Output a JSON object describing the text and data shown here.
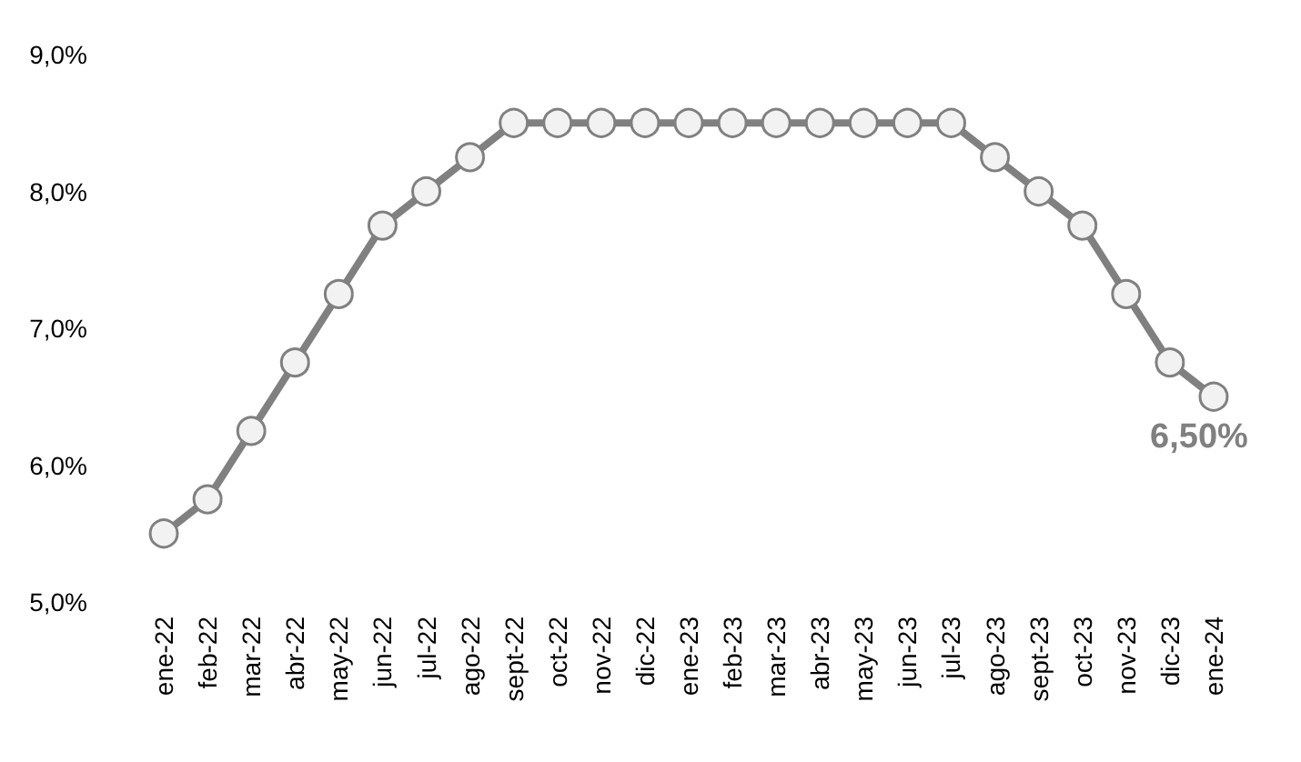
{
  "chart_data": {
    "type": "line",
    "categories": [
      "ene-22",
      "feb-22",
      "mar-22",
      "abr-22",
      "may-22",
      "jun-22",
      "jul-22",
      "ago-22",
      "sept-22",
      "oct-22",
      "nov-22",
      "dic-22",
      "ene-23",
      "feb-23",
      "mar-23",
      "abr-23",
      "may-23",
      "jun-23",
      "jul-23",
      "ago-23",
      "sept-23",
      "oct-23",
      "nov-23",
      "dic-23",
      "ene-24"
    ],
    "series": [
      {
        "color": "#808080",
        "values": [
          5.5,
          5.75,
          6.25,
          6.75,
          7.25,
          7.75,
          8.0,
          8.25,
          8.5,
          8.5,
          8.5,
          8.5,
          8.5,
          8.5,
          8.5,
          8.5,
          8.5,
          8.5,
          8.5,
          8.25,
          8.0,
          7.75,
          7.25,
          6.75,
          6.5
        ]
      }
    ],
    "ylim": [
      5,
      9
    ],
    "yticks": [
      {
        "value": 5,
        "label": "5,0%"
      },
      {
        "value": 6,
        "label": "6,0%"
      },
      {
        "value": 7,
        "label": "7,0%"
      },
      {
        "value": 8,
        "label": "8,0%"
      },
      {
        "value": 9,
        "label": "9,0%"
      }
    ],
    "marker": "circle",
    "line_style": "solid",
    "grid": false,
    "annotations": [
      {
        "text": "6,50%",
        "x": "ene-24",
        "y": 6.5
      }
    ]
  }
}
